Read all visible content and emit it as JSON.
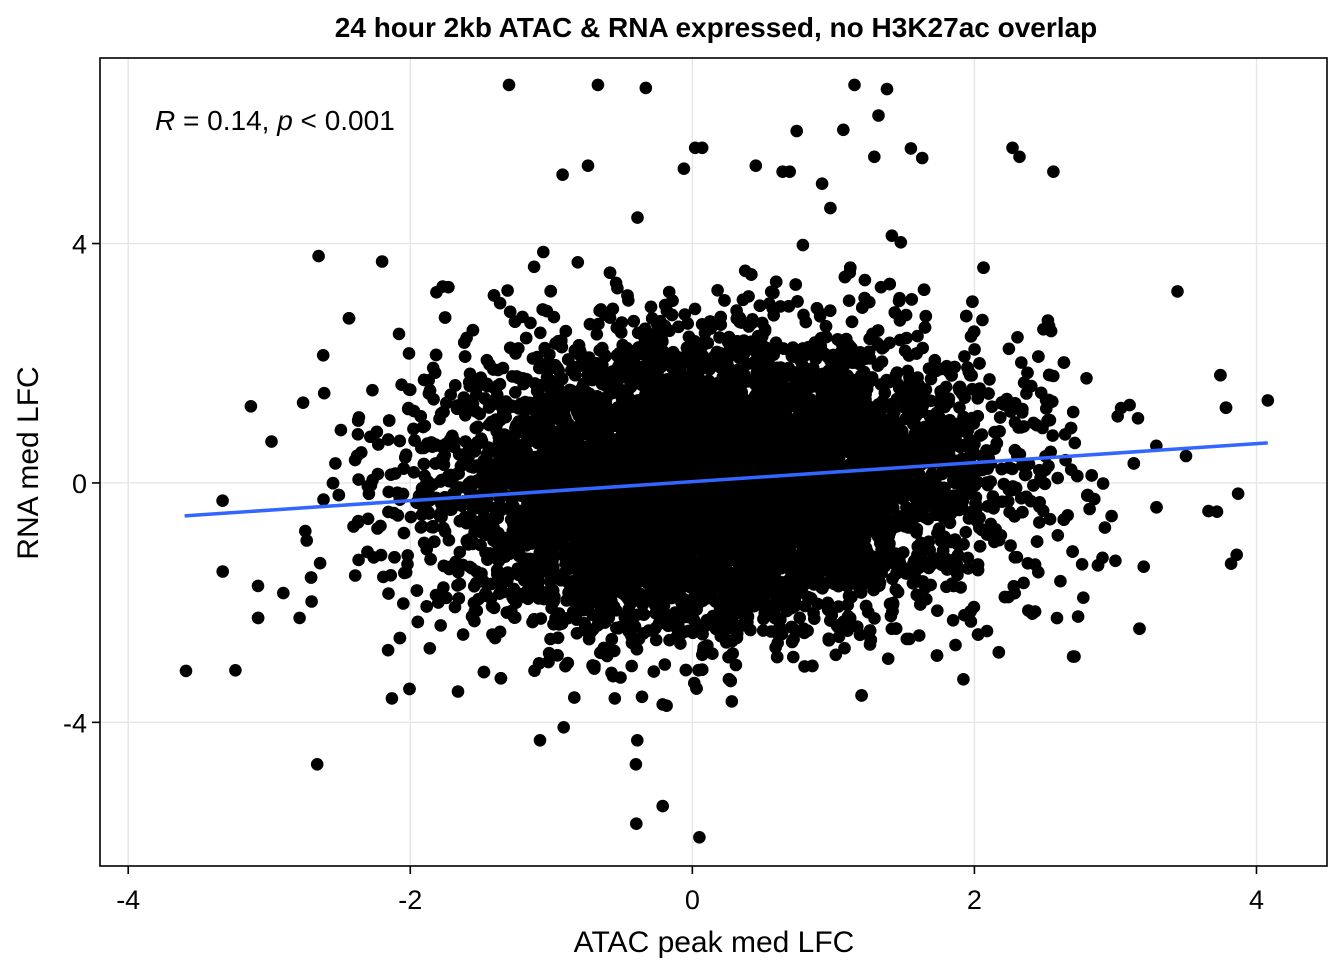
{
  "chart_data": {
    "type": "scatter",
    "title": "24 hour 2kb ATAC & RNA expressed, no H3K27ac overlap",
    "xlabel": "ATAC peak med LFC",
    "ylabel": "RNA med LFC",
    "xlim": [
      -4.2,
      4.5
    ],
    "ylim": [
      -6.4,
      7.1
    ],
    "xticks": [
      -4,
      -2,
      0,
      2,
      4
    ],
    "xtick_labels": [
      "-4",
      "-2",
      "0",
      "2",
      "4"
    ],
    "yticks": [
      -4,
      0,
      4
    ],
    "ytick_labels": [
      "-4",
      "0",
      "4"
    ],
    "grid": true,
    "annotation": {
      "r_symbol": "R",
      "r_text": " = 0.14, ",
      "p_symbol": "p",
      "p_text": " < 0.001"
    },
    "regression_line": {
      "color": "#3366FF",
      "x": [
        -3.6,
        4.08
      ],
      "y": [
        -0.55,
        0.67
      ]
    },
    "point_color": "#000000",
    "cloud": {
      "center_x": 0.15,
      "center_y": 0.0,
      "count": 9000
    },
    "series": [
      {
        "x": [
          -1.3,
          -0.67,
          -0.33,
          1.15,
          1.38,
          1.32,
          0.74,
          1.07,
          1.29,
          1.55,
          1.63,
          2.27,
          2.32,
          2.56,
          -0.92,
          0.02,
          0.07,
          -0.74,
          -0.06,
          0.45,
          0.92,
          0.64,
          0.69,
          -2.65,
          -2.2,
          -1.77,
          -1.73,
          3.44,
          -2.08,
          -3.13,
          -2.76,
          -2.61,
          -3.59,
          -3.33,
          -3.08,
          -3.24,
          -2.9,
          -2.7,
          -1.25,
          -0.21,
          0.28,
          3.04,
          3.1,
          3.16,
          4.08,
          3.72,
          3.82,
          3.87,
          3.5,
          3.29,
          3.66,
          3.86,
          2.71,
          2.43,
          -2.66,
          -2.13,
          -1.08,
          -0.39,
          -0.4,
          -0.21,
          0.05,
          2.7,
          3.0,
          1.26,
          0.59,
          3.2,
          1.04,
          -0.55
        ],
        "y": [
          6.65,
          6.65,
          6.6,
          6.65,
          6.58,
          6.14,
          5.88,
          5.9,
          5.45,
          5.59,
          5.43,
          5.6,
          5.45,
          5.2,
          5.15,
          5.6,
          5.6,
          5.3,
          5.25,
          5.3,
          5.0,
          5.2,
          5.2,
          3.79,
          3.7,
          3.28,
          3.27,
          3.2,
          2.49,
          1.28,
          1.34,
          1.5,
          -3.14,
          -1.48,
          -1.72,
          -3.13,
          -1.84,
          -1.98,
          -2.0,
          -3.7,
          -3.65,
          1.25,
          1.3,
          1.08,
          1.38,
          -0.48,
          -1.35,
          -0.18,
          0.45,
          0.62,
          -0.47,
          -1.2,
          -2.9,
          -2.15,
          -4.7,
          -3.6,
          -4.3,
          -4.3,
          -4.7,
          -5.4,
          -5.92,
          -2.9,
          -1.3,
          -2.7,
          -2.75,
          -1.4,
          -2.57,
          -3.6
        ]
      }
    ]
  }
}
